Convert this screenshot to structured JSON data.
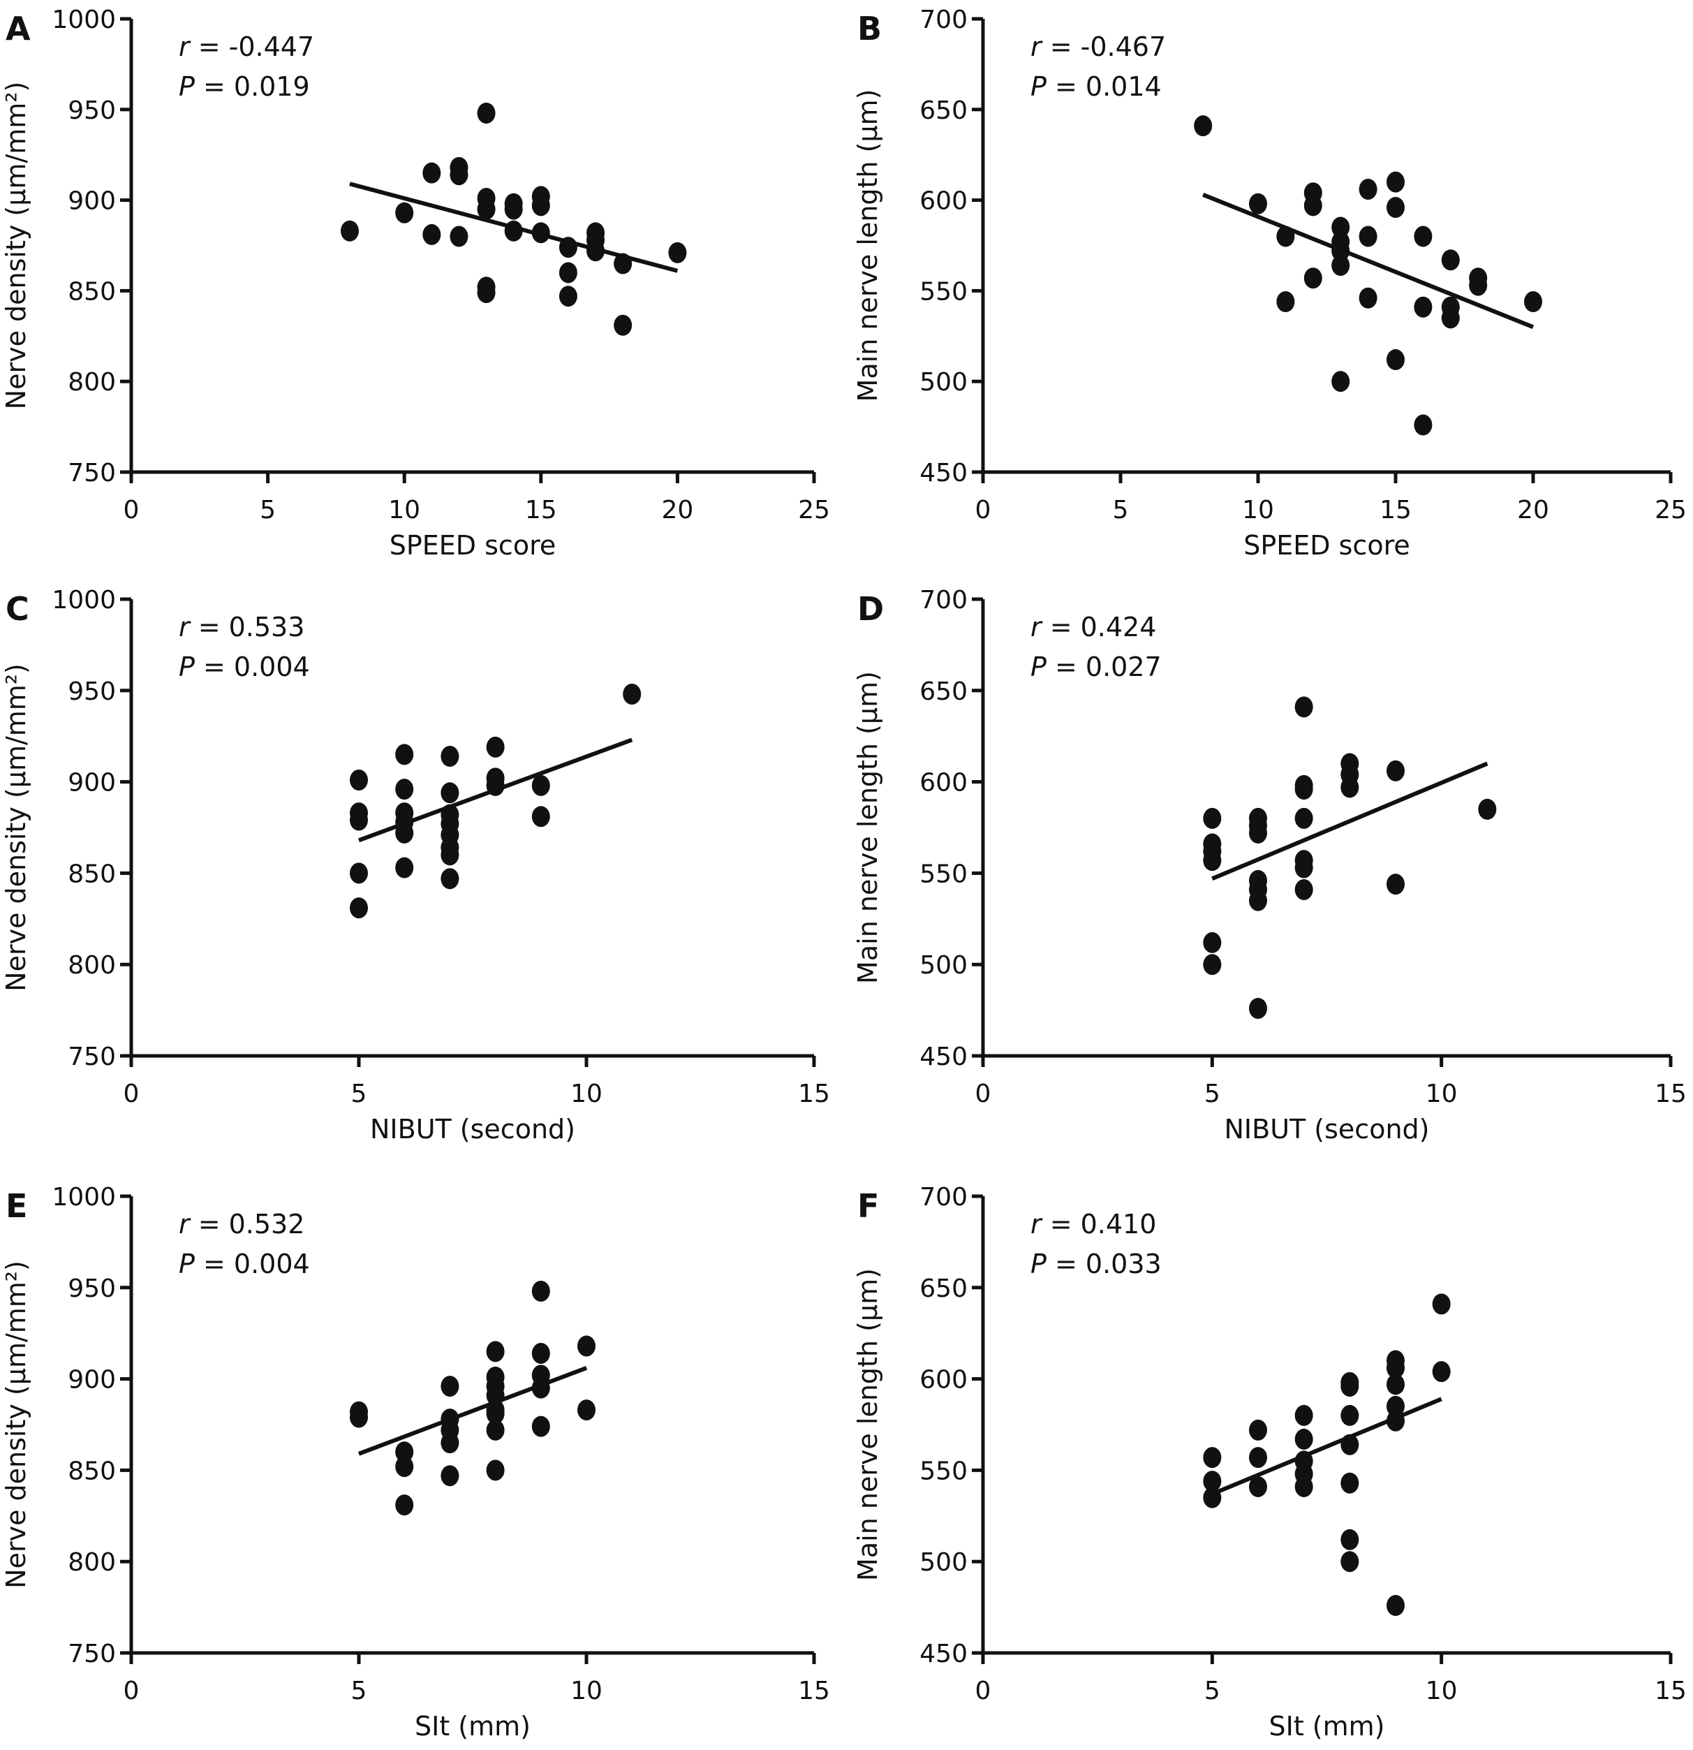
{
  "chart_data": [
    {
      "panel": "A",
      "type": "scatter",
      "xlabel": "SPEED score",
      "ylabel": "Nerve density (μm/mm²)",
      "xlim": [
        0,
        25
      ],
      "ylim": [
        750,
        1000
      ],
      "xticks": [
        0,
        5,
        10,
        15,
        20,
        25
      ],
      "yticks": [
        750,
        800,
        850,
        900,
        950,
        1000
      ],
      "r_text": "-0.447",
      "p_text": "0.019",
      "trendline": [
        [
          8,
          909
        ],
        [
          20,
          861
        ]
      ],
      "points": [
        [
          8,
          883
        ],
        [
          10,
          893
        ],
        [
          11,
          915
        ],
        [
          11,
          881
        ],
        [
          12,
          918
        ],
        [
          12,
          914
        ],
        [
          12,
          880
        ],
        [
          13,
          948
        ],
        [
          13,
          901
        ],
        [
          13,
          895
        ],
        [
          13,
          852
        ],
        [
          13,
          849
        ],
        [
          14,
          898
        ],
        [
          14,
          895
        ],
        [
          14,
          883
        ],
        [
          15,
          902
        ],
        [
          15,
          897
        ],
        [
          15,
          882
        ],
        [
          16,
          874
        ],
        [
          16,
          860
        ],
        [
          16,
          847
        ],
        [
          17,
          882
        ],
        [
          17,
          878
        ],
        [
          17,
          872
        ],
        [
          18,
          865
        ],
        [
          18,
          831
        ],
        [
          20,
          871
        ]
      ]
    },
    {
      "panel": "B",
      "type": "scatter",
      "xlabel": "SPEED score",
      "ylabel": "Main nerve length (μm)",
      "xlim": [
        0,
        25
      ],
      "ylim": [
        450,
        700
      ],
      "xticks": [
        0,
        5,
        10,
        15,
        20,
        25
      ],
      "yticks": [
        450,
        500,
        550,
        600,
        650,
        700
      ],
      "r_text": "-0.467",
      "p_text": "0.014",
      "trendline": [
        [
          8,
          603
        ],
        [
          20,
          530
        ]
      ],
      "points": [
        [
          8,
          641
        ],
        [
          10,
          598
        ],
        [
          11,
          580
        ],
        [
          11,
          544
        ],
        [
          12,
          604
        ],
        [
          12,
          597
        ],
        [
          12,
          557
        ],
        [
          13,
          585
        ],
        [
          13,
          577
        ],
        [
          13,
          572
        ],
        [
          13,
          564
        ],
        [
          13,
          500
        ],
        [
          14,
          606
        ],
        [
          14,
          580
        ],
        [
          14,
          546
        ],
        [
          15,
          610
        ],
        [
          15,
          596
        ],
        [
          15,
          512
        ],
        [
          16,
          580
        ],
        [
          16,
          541
        ],
        [
          16,
          476
        ],
        [
          17,
          567
        ],
        [
          17,
          541
        ],
        [
          17,
          535
        ],
        [
          18,
          557
        ],
        [
          18,
          553
        ],
        [
          20,
          544
        ]
      ]
    },
    {
      "panel": "C",
      "type": "scatter",
      "xlabel": "NIBUT (second)",
      "ylabel": "Nerve density (μm/mm²)",
      "xlim": [
        0,
        15
      ],
      "ylim": [
        750,
        1000
      ],
      "xticks": [
        0,
        5,
        10,
        15
      ],
      "yticks": [
        750,
        800,
        850,
        900,
        950,
        1000
      ],
      "r_text": "0.533",
      "p_text": "0.004",
      "trendline": [
        [
          5,
          868
        ],
        [
          11,
          923
        ]
      ],
      "points": [
        [
          5,
          901
        ],
        [
          5,
          883
        ],
        [
          5,
          879
        ],
        [
          5,
          850
        ],
        [
          5,
          831
        ],
        [
          6,
          915
        ],
        [
          6,
          896
        ],
        [
          6,
          883
        ],
        [
          6,
          878
        ],
        [
          6,
          872
        ],
        [
          6,
          853
        ],
        [
          7,
          914
        ],
        [
          7,
          894
        ],
        [
          7,
          882
        ],
        [
          7,
          877
        ],
        [
          7,
          871
        ],
        [
          7,
          864
        ],
        [
          7,
          860
        ],
        [
          7,
          847
        ],
        [
          8,
          919
        ],
        [
          8,
          902
        ],
        [
          8,
          898
        ],
        [
          9,
          898
        ],
        [
          9,
          881
        ],
        [
          11,
          948
        ]
      ]
    },
    {
      "panel": "D",
      "type": "scatter",
      "xlabel": "NIBUT (second)",
      "ylabel": "Main nerve length (μm)",
      "xlim": [
        0,
        15
      ],
      "ylim": [
        450,
        700
      ],
      "xticks": [
        0,
        5,
        10,
        15
      ],
      "yticks": [
        450,
        500,
        550,
        600,
        650,
        700
      ],
      "r_text": "0.424",
      "p_text": "0.027",
      "trendline": [
        [
          5,
          547
        ],
        [
          11,
          610
        ]
      ],
      "points": [
        [
          5,
          580
        ],
        [
          5,
          566
        ],
        [
          5,
          562
        ],
        [
          5,
          557
        ],
        [
          5,
          512
        ],
        [
          5,
          500
        ],
        [
          6,
          580
        ],
        [
          6,
          576
        ],
        [
          6,
          572
        ],
        [
          6,
          546
        ],
        [
          6,
          541
        ],
        [
          6,
          535
        ],
        [
          6,
          476
        ],
        [
          7,
          641
        ],
        [
          7,
          598
        ],
        [
          7,
          596
        ],
        [
          7,
          580
        ],
        [
          7,
          557
        ],
        [
          7,
          553
        ],
        [
          7,
          541
        ],
        [
          8,
          610
        ],
        [
          8,
          604
        ],
        [
          8,
          597
        ],
        [
          9,
          606
        ],
        [
          9,
          544
        ],
        [
          11,
          585
        ]
      ]
    },
    {
      "panel": "E",
      "type": "scatter",
      "xlabel": "SIt (mm)",
      "ylabel": "Nerve density (μm/mm²)",
      "xlim": [
        0,
        15
      ],
      "ylim": [
        750,
        1000
      ],
      "xticks": [
        0,
        5,
        10,
        15
      ],
      "yticks": [
        750,
        800,
        850,
        900,
        950,
        1000
      ],
      "r_text": "0.532",
      "p_text": "0.004",
      "trendline": [
        [
          5,
          859
        ],
        [
          10,
          906
        ]
      ],
      "points": [
        [
          5,
          882
        ],
        [
          5,
          879
        ],
        [
          6,
          860
        ],
        [
          6,
          852
        ],
        [
          6,
          831
        ],
        [
          7,
          896
        ],
        [
          7,
          878
        ],
        [
          7,
          872
        ],
        [
          7,
          865
        ],
        [
          7,
          847
        ],
        [
          8,
          915
        ],
        [
          8,
          901
        ],
        [
          8,
          896
        ],
        [
          8,
          891
        ],
        [
          8,
          883
        ],
        [
          8,
          881
        ],
        [
          8,
          872
        ],
        [
          8,
          850
        ],
        [
          9,
          948
        ],
        [
          9,
          914
        ],
        [
          9,
          902
        ],
        [
          9,
          895
        ],
        [
          9,
          874
        ],
        [
          10,
          918
        ],
        [
          10,
          883
        ]
      ]
    },
    {
      "panel": "F",
      "type": "scatter",
      "xlabel": "SIt (mm)",
      "ylabel": "Main nerve length (μm)",
      "xlim": [
        0,
        15
      ],
      "ylim": [
        450,
        700
      ],
      "xticks": [
        0,
        5,
        10,
        15
      ],
      "yticks": [
        450,
        500,
        550,
        600,
        650,
        700
      ],
      "r_text": "0.410",
      "p_text": "0.033",
      "trendline": [
        [
          5,
          537
        ],
        [
          10,
          589
        ]
      ],
      "points": [
        [
          5,
          557
        ],
        [
          5,
          544
        ],
        [
          5,
          535
        ],
        [
          6,
          572
        ],
        [
          6,
          557
        ],
        [
          6,
          541
        ],
        [
          7,
          580
        ],
        [
          7,
          567
        ],
        [
          7,
          555
        ],
        [
          7,
          548
        ],
        [
          7,
          541
        ],
        [
          8,
          598
        ],
        [
          8,
          596
        ],
        [
          8,
          580
        ],
        [
          8,
          564
        ],
        [
          8,
          543
        ],
        [
          8,
          512
        ],
        [
          8,
          500
        ],
        [
          9,
          610
        ],
        [
          9,
          606
        ],
        [
          9,
          597
        ],
        [
          9,
          585
        ],
        [
          9,
          577
        ],
        [
          9,
          476
        ],
        [
          10,
          641
        ],
        [
          10,
          604
        ]
      ]
    }
  ],
  "stat_labels": {
    "r": "r",
    "p": "P",
    "eq": " = "
  }
}
